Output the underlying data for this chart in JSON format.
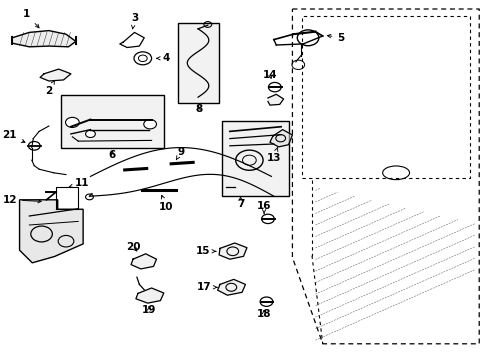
{
  "bg_color": "#ffffff",
  "line_color": "#000000",
  "font_size": 7.5,
  "door_outline": {
    "x": [
      0.595,
      0.985,
      0.985,
      0.66,
      0.595
    ],
    "y": [
      0.97,
      0.97,
      0.05,
      0.05,
      0.3
    ]
  },
  "window_outline": {
    "x": [
      0.615,
      0.965,
      0.965,
      0.615
    ],
    "y": [
      0.5,
      0.5,
      0.95,
      0.95
    ]
  },
  "inner_door_left": {
    "x": [
      0.635,
      0.635
    ],
    "y": [
      0.5,
      0.3
    ]
  }
}
